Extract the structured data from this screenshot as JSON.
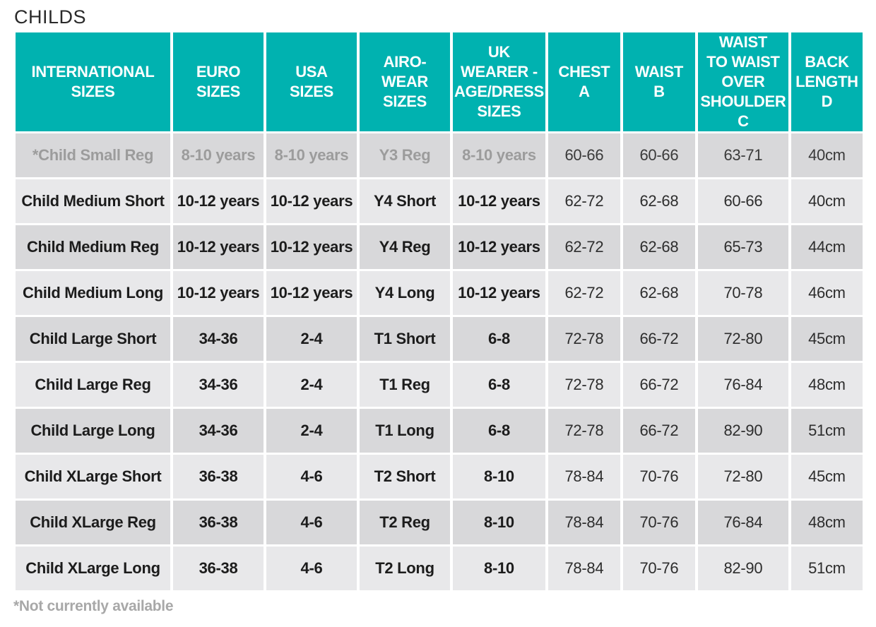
{
  "title": "CHILDS",
  "headers": [
    "INTERNATIONAL SIZES",
    "EURO SIZES",
    "USA SIZES",
    "AIRO-WEAR SIZES",
    "UK WEARER - AGE/DRESS SIZES",
    "CHEST A",
    "WAIST B",
    "WAIST TO WAIST OVER SHOULDER C",
    "BACK LENGTH D"
  ],
  "header_lines": [
    [
      "INTERNATIONAL",
      "SIZES"
    ],
    [
      "EURO",
      "SIZES"
    ],
    [
      "USA",
      "SIZES"
    ],
    [
      "AIRO-WEAR",
      "SIZES"
    ],
    [
      "UK",
      "WEARER -",
      "AGE/DRESS",
      "SIZES"
    ],
    [
      "CHEST",
      "A"
    ],
    [
      "WAIST",
      "B"
    ],
    [
      "WAIST",
      "TO WAIST",
      "OVER",
      "SHOULDER",
      "C"
    ],
    [
      "BACK",
      "LENGTH",
      "D"
    ]
  ],
  "rows": [
    [
      "*Child Small Reg",
      "8-10 years",
      "8-10 years",
      "Y3 Reg",
      "8-10 years",
      "60-66",
      "60-66",
      "63-71",
      "40cm"
    ],
    [
      "Child Medium Short",
      "10-12 years",
      "10-12 years",
      "Y4 Short",
      "10-12 years",
      "62-72",
      "62-68",
      "60-66",
      "40cm"
    ],
    [
      "Child Medium Reg",
      "10-12 years",
      "10-12 years",
      "Y4 Reg",
      "10-12 years",
      "62-72",
      "62-68",
      "65-73",
      "44cm"
    ],
    [
      "Child Medium Long",
      "10-12 years",
      "10-12 years",
      "Y4 Long",
      "10-12 years",
      "62-72",
      "62-68",
      "70-78",
      "46cm"
    ],
    [
      "Child Large Short",
      "34-36",
      "2-4",
      "T1 Short",
      "6-8",
      "72-78",
      "66-72",
      "72-80",
      "45cm"
    ],
    [
      "Child Large Reg",
      "34-36",
      "2-4",
      "T1 Reg",
      "6-8",
      "72-78",
      "66-72",
      "76-84",
      "48cm"
    ],
    [
      "Child Large Long",
      "34-36",
      "2-4",
      "T1 Long",
      "6-8",
      "72-78",
      "66-72",
      "82-90",
      "51cm"
    ],
    [
      "Child XLarge Short",
      "36-38",
      "4-6",
      "T2 Short",
      "8-10",
      "78-84",
      "70-76",
      "72-80",
      "45cm"
    ],
    [
      "Child XLarge Reg",
      "36-38",
      "4-6",
      "T2 Reg",
      "8-10",
      "78-84",
      "70-76",
      "76-84",
      "48cm"
    ],
    [
      "Child XLarge Long",
      "36-38",
      "4-6",
      "T2 Long",
      "8-10",
      "78-84",
      "70-76",
      "82-90",
      "51cm"
    ]
  ],
  "unavailable_rows": [
    0
  ],
  "footnote": "*Not currently available",
  "colors": {
    "header_bg": "#00b2b0",
    "header_text": "#ffffff",
    "row_dark": "#d8d8da",
    "row_light": "#e8e8ea",
    "unavailable_text": "#9c9c9c",
    "footnote_text": "#a8a8a8"
  }
}
